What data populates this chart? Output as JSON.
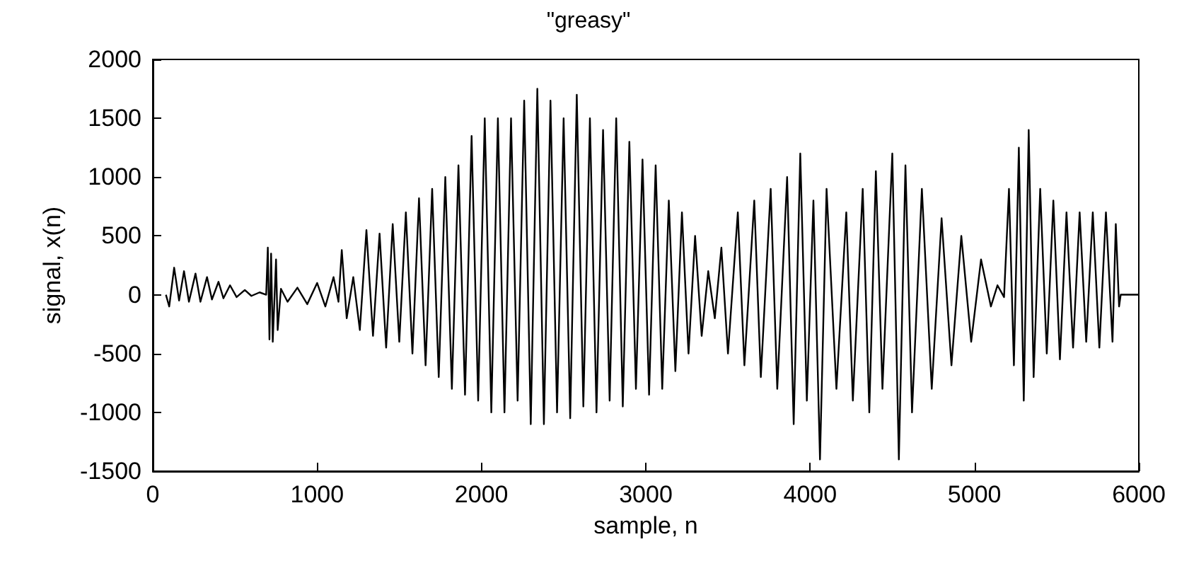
{
  "chart_data": {
    "type": "line",
    "title": "\"greasy\"",
    "xlabel": "sample, n",
    "ylabel": "signal, x(n)",
    "xlim": [
      0,
      6000
    ],
    "xticks": [
      0,
      1000,
      2000,
      3000,
      4000,
      5000,
      6000
    ],
    "ylim": [
      -1500,
      2000
    ],
    "yticks": [
      -1500,
      -1000,
      -500,
      0,
      500,
      1000,
      1500,
      2000
    ],
    "line_style": "solid",
    "series": [
      {
        "color": "#000000",
        "x": [
          80,
          100,
          130,
          160,
          190,
          220,
          260,
          290,
          330,
          360,
          400,
          430,
          470,
          510,
          560,
          600,
          650,
          690,
          700,
          710,
          720,
          730,
          750,
          760,
          780,
          820,
          880,
          940,
          1000,
          1050,
          1100,
          1130,
          1150,
          1180,
          1220,
          1260,
          1300,
          1340,
          1380,
          1420,
          1460,
          1500,
          1540,
          1580,
          1620,
          1660,
          1700,
          1740,
          1780,
          1820,
          1860,
          1900,
          1940,
          1980,
          2020,
          2060,
          2100,
          2140,
          2180,
          2220,
          2260,
          2300,
          2340,
          2380,
          2420,
          2460,
          2500,
          2540,
          2580,
          2620,
          2660,
          2700,
          2740,
          2780,
          2820,
          2860,
          2900,
          2940,
          2980,
          3020,
          3060,
          3100,
          3140,
          3180,
          3220,
          3260,
          3300,
          3340,
          3380,
          3420,
          3460,
          3500,
          3560,
          3600,
          3660,
          3700,
          3760,
          3800,
          3860,
          3900,
          3940,
          3980,
          4020,
          4060,
          4100,
          4160,
          4220,
          4260,
          4320,
          4360,
          4400,
          4440,
          4500,
          4540,
          4580,
          4620,
          4680,
          4740,
          4800,
          4860,
          4920,
          4980,
          5040,
          5100,
          5140,
          5180,
          5210,
          5240,
          5270,
          5300,
          5330,
          5360,
          5400,
          5440,
          5480,
          5520,
          5560,
          5600,
          5640,
          5680,
          5720,
          5760,
          5800,
          5840,
          5860,
          5880,
          5890,
          6000
        ],
        "values": [
          0,
          -100,
          230,
          -50,
          200,
          -60,
          180,
          -60,
          150,
          -40,
          110,
          -30,
          80,
          -20,
          40,
          -10,
          20,
          0,
          400,
          -380,
          350,
          -400,
          300,
          -300,
          50,
          -60,
          60,
          -80,
          100,
          -100,
          150,
          -60,
          380,
          -200,
          150,
          -300,
          550,
          -350,
          520,
          -450,
          600,
          -400,
          700,
          -500,
          820,
          -600,
          900,
          -700,
          1000,
          -800,
          1100,
          -850,
          1350,
          -900,
          1500,
          -1000,
          1500,
          -1000,
          1500,
          -900,
          1650,
          -1100,
          1750,
          -1100,
          1650,
          -1000,
          1500,
          -1050,
          1700,
          -950,
          1500,
          -1000,
          1400,
          -900,
          1500,
          -950,
          1300,
          -800,
          1150,
          -850,
          1100,
          -800,
          800,
          -650,
          700,
          -500,
          500,
          -350,
          200,
          -200,
          400,
          -500,
          700,
          -600,
          800,
          -700,
          900,
          -800,
          1000,
          -1100,
          1200,
          -900,
          800,
          -1400,
          900,
          -800,
          700,
          -900,
          900,
          -1000,
          1050,
          -800,
          1200,
          -1400,
          1100,
          -1000,
          900,
          -800,
          650,
          -600,
          500,
          -400,
          300,
          -100,
          80,
          -20,
          900,
          -600,
          1250,
          -900,
          1400,
          -700,
          900,
          -500,
          800,
          -550,
          700,
          -450,
          700,
          -400,
          700,
          -450,
          700,
          -400,
          600,
          -100,
          0,
          0
        ]
      }
    ]
  }
}
